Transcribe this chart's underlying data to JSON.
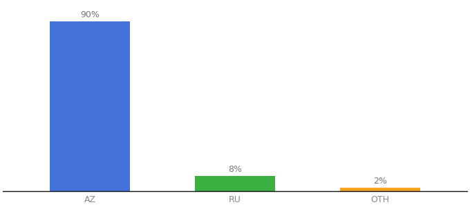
{
  "categories": [
    "AZ",
    "RU",
    "OTH"
  ],
  "values": [
    90,
    8,
    2
  ],
  "bar_colors": [
    "#4472db",
    "#3cb043",
    "#f5a623"
  ],
  "labels": [
    "90%",
    "8%",
    "2%"
  ],
  "ylim": [
    0,
    100
  ],
  "background_color": "#ffffff",
  "label_fontsize": 9,
  "tick_fontsize": 9,
  "bar_width": 0.55
}
